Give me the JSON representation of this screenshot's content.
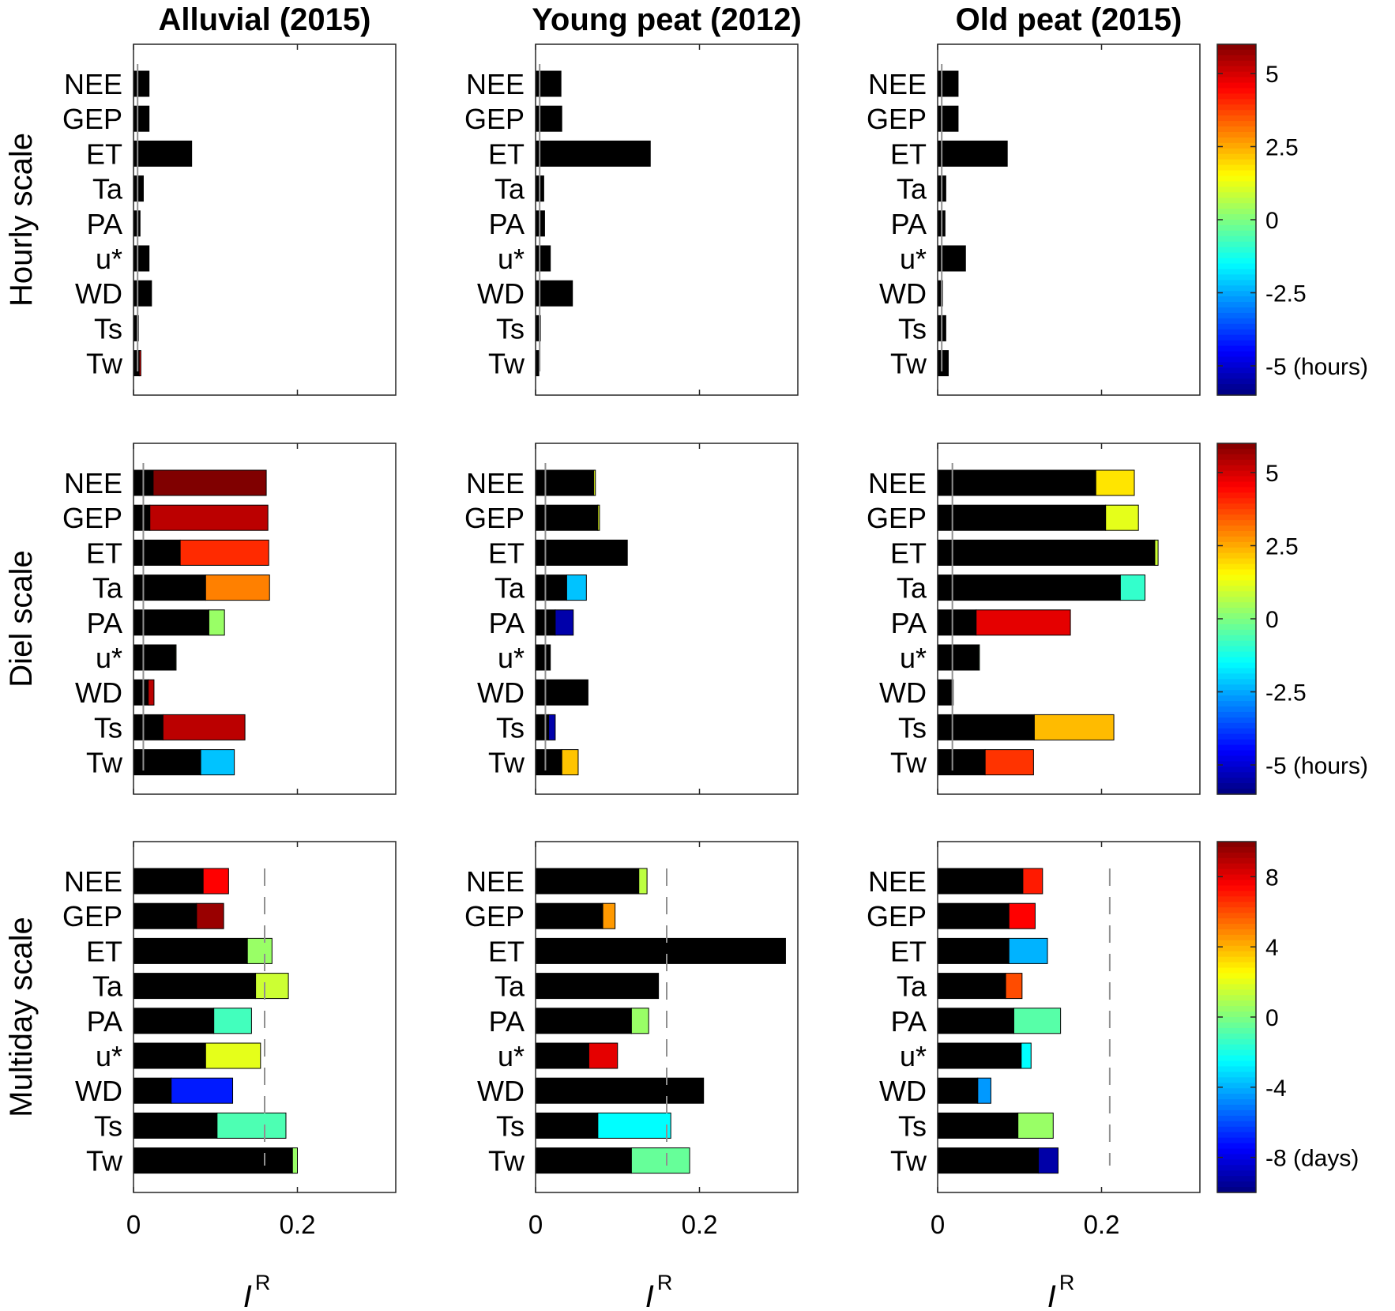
{
  "chart_data": {
    "type": "bar",
    "orientation": "horizontal-stacked",
    "columns": [
      {
        "title": "Alluvial (2015)"
      },
      {
        "title": "Young peat (2012)"
      },
      {
        "title": "Old peat (2015)"
      }
    ],
    "rows": [
      {
        "title": "Hourly scale",
        "colorbar": {
          "min": -6,
          "max": 6,
          "ticks": [
            5,
            2.5,
            0,
            -2.5,
            -5
          ],
          "tick_labels": [
            "5",
            "2.5",
            "0",
            "-2.5",
            "-5 (hours)"
          ]
        }
      },
      {
        "title": "Diel scale",
        "colorbar": {
          "min": -6,
          "max": 6,
          "ticks": [
            5,
            2.5,
            0,
            -2.5,
            -5
          ],
          "tick_labels": [
            "5",
            "2.5",
            "0",
            "-2.5",
            "-5 (hours)"
          ]
        }
      },
      {
        "title": "Multiday scale",
        "colorbar": {
          "min": -10,
          "max": 10,
          "ticks": [
            8,
            4,
            0,
            -4,
            -8
          ],
          "tick_labels": [
            "8",
            "4",
            "0",
            "-4",
            "-8 (days)"
          ]
        }
      }
    ],
    "categories": [
      "NEE",
      "GEP",
      "ET",
      "Ta",
      "PA",
      "u*",
      "WD",
      "Ts",
      "Tw"
    ],
    "xlim": [
      0,
      0.32
    ],
    "xticks": [
      0,
      0.2
    ],
    "xtick_labels": [
      "0",
      "0.2"
    ],
    "xlabel": "I",
    "xlabel_sup": "R",
    "panels": [
      {
        "row": 0,
        "col": 0,
        "threshold": 0.005,
        "base": [
          0.019,
          0.019,
          0.071,
          0.012,
          0.008,
          0.019,
          0.022,
          0.006,
          0.007
        ],
        "extra": [
          0,
          0,
          0,
          0,
          0,
          0,
          0,
          0,
          0.002
        ],
        "lag": [
          null,
          null,
          null,
          null,
          null,
          null,
          null,
          null,
          5
        ]
      },
      {
        "row": 0,
        "col": 1,
        "threshold": 0.005,
        "base": [
          0.031,
          0.032,
          0.14,
          0.01,
          0.011,
          0.018,
          0.045,
          0.006,
          0.004
        ],
        "extra": [
          0,
          0,
          0,
          0,
          0,
          0,
          0,
          0,
          0
        ],
        "lag": [
          null,
          null,
          null,
          null,
          null,
          null,
          null,
          null,
          null
        ]
      },
      {
        "row": 0,
        "col": 2,
        "threshold": 0.005,
        "base": [
          0.025,
          0.025,
          0.085,
          0.01,
          0.009,
          0.034,
          0.006,
          0.01,
          0.013
        ],
        "extra": [
          0,
          0,
          0,
          0,
          0,
          0,
          0,
          0,
          0
        ],
        "lag": [
          null,
          null,
          null,
          null,
          null,
          null,
          null,
          null,
          null
        ]
      },
      {
        "row": 1,
        "col": 0,
        "threshold": 0.012,
        "base": [
          0.024,
          0.02,
          0.057,
          0.088,
          0.092,
          0.051,
          0.018,
          0.036,
          0.082
        ],
        "extra": [
          0.138,
          0.144,
          0.108,
          0.078,
          0.019,
          0.001,
          0.007,
          0.1,
          0.041
        ],
        "lag": [
          6,
          5.3,
          4,
          3,
          0.3,
          0.3,
          5.3,
          5.3,
          -2.2
        ]
      },
      {
        "row": 1,
        "col": 1,
        "threshold": 0.012,
        "base": [
          0.071,
          0.076,
          0.112,
          0.038,
          0.024,
          0.018,
          0.064,
          0.016,
          0.032
        ],
        "extra": [
          0.002,
          0.002,
          0,
          0.024,
          0.022,
          0,
          0,
          0.008,
          0.02
        ],
        "lag": [
          1.2,
          1.2,
          null,
          -2.2,
          -5.5,
          null,
          null,
          -5.5,
          2.2
        ]
      },
      {
        "row": 1,
        "col": 2,
        "threshold": 0.018,
        "base": [
          0.193,
          0.205,
          0.265,
          0.223,
          0.047,
          0.05,
          0.018,
          0.118,
          0.058
        ],
        "extra": [
          0.047,
          0.04,
          0.004,
          0.03,
          0.115,
          0.001,
          0.001,
          0.097,
          0.059
        ],
        "lag": [
          1.8,
          1.2,
          0.9,
          -0.9,
          4.8,
          0,
          0,
          2.3,
          3.9
        ]
      },
      {
        "row": 2,
        "col": 0,
        "threshold": 0.16,
        "base": [
          0.085,
          0.077,
          0.139,
          0.149,
          0.098,
          0.088,
          0.046,
          0.102,
          0.194
        ],
        "extra": [
          0.031,
          0.033,
          0.03,
          0.04,
          0.046,
          0.067,
          0.075,
          0.084,
          0.006
        ],
        "lag": [
          7.5,
          9.5,
          0.5,
          1.5,
          -1.2,
          2,
          -7,
          -1,
          0.5
        ]
      },
      {
        "row": 2,
        "col": 1,
        "threshold": 0.16,
        "base": [
          0.126,
          0.082,
          0.305,
          0.15,
          0.117,
          0.065,
          0.205,
          0.076,
          0.117
        ],
        "extra": [
          0.01,
          0.015,
          0,
          0,
          0.021,
          0.035,
          0,
          0.089,
          0.071
        ],
        "lag": [
          1.2,
          4.5,
          null,
          null,
          0.5,
          8,
          null,
          -2.5,
          -0.5
        ]
      },
      {
        "row": 2,
        "col": 2,
        "threshold": 0.21,
        "base": [
          0.104,
          0.087,
          0.087,
          0.083,
          0.093,
          0.102,
          0.049,
          0.098,
          0.123
        ],
        "extra": [
          0.024,
          0.032,
          0.047,
          0.02,
          0.057,
          0.012,
          0.016,
          0.043,
          0.024
        ],
        "lag": [
          7,
          7.5,
          -4,
          6,
          -0.8,
          -2.5,
          -4.5,
          0.5,
          -9.2
        ]
      }
    ]
  }
}
